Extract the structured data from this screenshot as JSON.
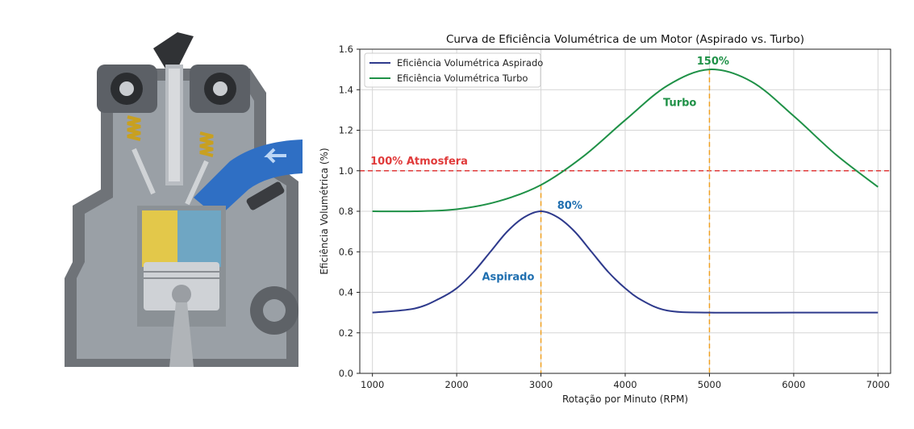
{
  "chart_data": {
    "type": "line",
    "title": "Curva de Eficiência Volumétrica de um Motor (Aspirado vs. Turbo)",
    "xlabel": "Rotação por Minuto (RPM)",
    "ylabel": "Eficiência Volumétrica (%)",
    "xlim": [
      850,
      7150
    ],
    "ylim": [
      0.0,
      1.6
    ],
    "xticks": [
      1000,
      2000,
      3000,
      4000,
      5000,
      6000,
      7000
    ],
    "yticks": [
      0.0,
      0.2,
      0.4,
      0.6,
      0.8,
      1.0,
      1.2,
      1.4,
      1.6
    ],
    "grid": true,
    "legend_position": "top-left",
    "series": [
      {
        "name": "Eficiência Volumétrica Aspirado",
        "color": "#2e3a8c",
        "x": [
          1000,
          1500,
          1800,
          2000,
          2200,
          2400,
          2600,
          2800,
          3000,
          3200,
          3400,
          3600,
          3800,
          4000,
          4200,
          4500,
          5000,
          6000,
          7000
        ],
        "y": [
          0.3,
          0.32,
          0.37,
          0.42,
          0.5,
          0.6,
          0.7,
          0.77,
          0.8,
          0.77,
          0.7,
          0.6,
          0.5,
          0.42,
          0.36,
          0.31,
          0.3,
          0.3,
          0.3
        ]
      },
      {
        "name": "Eficiência Volumétrica Turbo",
        "color": "#1f9147",
        "x": [
          1000,
          1500,
          2000,
          2500,
          3000,
          3500,
          4000,
          4500,
          5000,
          5500,
          6000,
          6500,
          7000
        ],
        "y": [
          0.8,
          0.8,
          0.81,
          0.85,
          0.93,
          1.07,
          1.25,
          1.42,
          1.5,
          1.44,
          1.27,
          1.08,
          0.92
        ]
      }
    ],
    "reference_line": {
      "y": 1.0,
      "label": "100% Atmosfera",
      "color": "#e03a3a"
    },
    "vertical_markers": [
      {
        "x": 3000,
        "color": "#f0a020"
      },
      {
        "x": 5000,
        "color": "#f0a020"
      }
    ],
    "annotations": [
      {
        "text": "80%",
        "x": 3050,
        "y": 0.8,
        "color": "#1f6fb0"
      },
      {
        "text": "Aspirado",
        "x": 2300,
        "y": 0.46,
        "color": "#1f6fb0"
      },
      {
        "text": "150%",
        "x": 4850,
        "y": 1.5,
        "color": "#1f9147"
      },
      {
        "text": "Turbo",
        "x": 4450,
        "y": 1.32,
        "color": "#1f9147"
      },
      {
        "text": "100% Atmosfera",
        "x": 880,
        "y": 1.0,
        "color": "#e03a3a"
      }
    ]
  },
  "illustration": {
    "icon": "engine-cylinder-cutaway-icon"
  }
}
